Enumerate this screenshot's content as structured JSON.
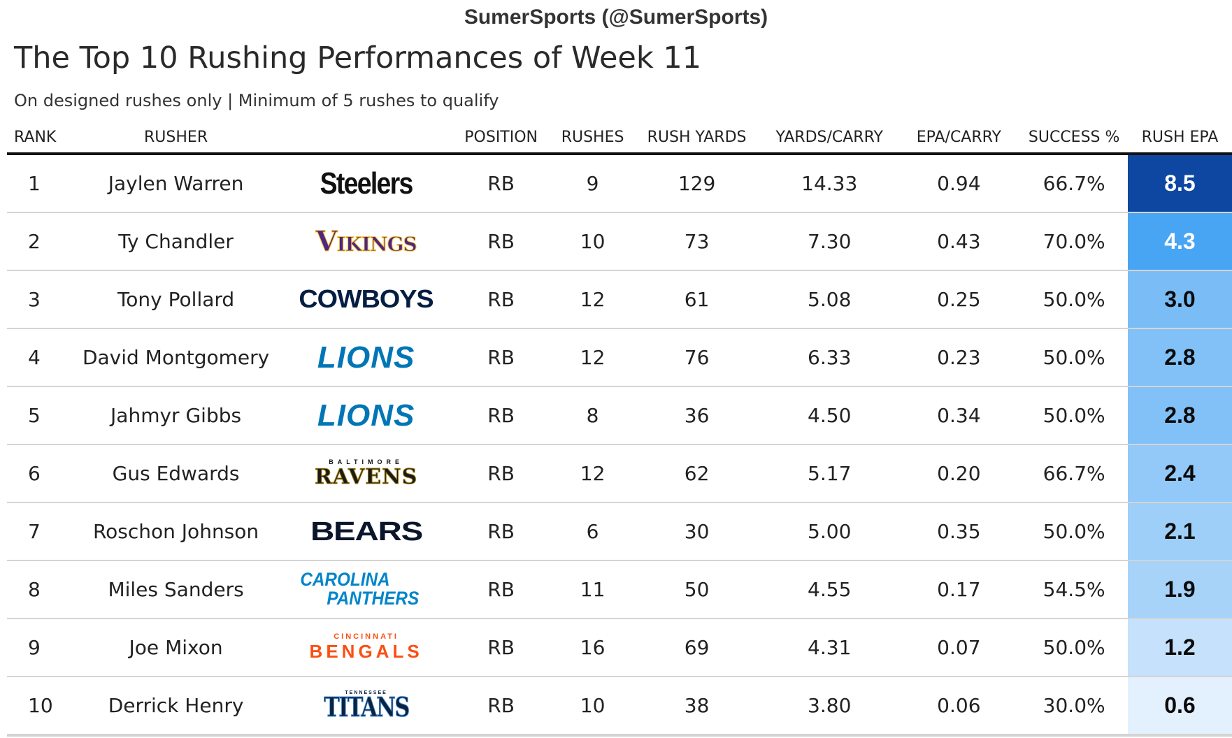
{
  "credit": "SumerSports (@SumerSports)",
  "title": "The Top 10 Rushing Performances of Week 11",
  "subtitle": "On designed rushes only | Minimum of 5 rushes to qualify",
  "columns": {
    "rank": "RANK",
    "rusher": "RUSHER",
    "position": "POSITION",
    "rushes": "RUSHES",
    "rush_yards": "RUSH YARDS",
    "yards_carry": "YARDS/CARRY",
    "epa_carry": "EPA/CARRY",
    "success": "SUCCESS %",
    "rush_epa": "RUSH EPA"
  },
  "chart_data": {
    "type": "table",
    "title": "The Top 10 Rushing Performances of Week 11",
    "subtitle": "On designed rushes only | Minimum of 5 rushes to qualify",
    "rows": [
      {
        "rank": "1",
        "rusher": "Jaylen Warren",
        "team": "Steelers",
        "position": "RB",
        "rushes": "9",
        "rush_yards": "129",
        "yards_carry": "14.33",
        "epa_carry": "0.94",
        "success": "66.7%",
        "rush_epa": "8.5",
        "epa_value": 8.5
      },
      {
        "rank": "2",
        "rusher": "Ty Chandler",
        "team": "Vikings",
        "position": "RB",
        "rushes": "10",
        "rush_yards": "73",
        "yards_carry": "7.30",
        "epa_carry": "0.43",
        "success": "70.0%",
        "rush_epa": "4.3",
        "epa_value": 4.3
      },
      {
        "rank": "3",
        "rusher": "Tony Pollard",
        "team": "COWBOYS",
        "position": "RB",
        "rushes": "12",
        "rush_yards": "61",
        "yards_carry": "5.08",
        "epa_carry": "0.25",
        "success": "50.0%",
        "rush_epa": "3.0",
        "epa_value": 3.0
      },
      {
        "rank": "4",
        "rusher": "David Montgomery",
        "team": "LIONS",
        "position": "RB",
        "rushes": "12",
        "rush_yards": "76",
        "yards_carry": "6.33",
        "epa_carry": "0.23",
        "success": "50.0%",
        "rush_epa": "2.8",
        "epa_value": 2.8
      },
      {
        "rank": "5",
        "rusher": "Jahmyr Gibbs",
        "team": "LIONS",
        "position": "RB",
        "rushes": "8",
        "rush_yards": "36",
        "yards_carry": "4.50",
        "epa_carry": "0.34",
        "success": "50.0%",
        "rush_epa": "2.8",
        "epa_value": 2.8
      },
      {
        "rank": "6",
        "rusher": "Gus Edwards",
        "team": "BALTIMORE RAVENS",
        "position": "RB",
        "rushes": "12",
        "rush_yards": "62",
        "yards_carry": "5.17",
        "epa_carry": "0.20",
        "success": "66.7%",
        "rush_epa": "2.4",
        "epa_value": 2.4
      },
      {
        "rank": "7",
        "rusher": "Roschon Johnson",
        "team": "BEARS",
        "position": "RB",
        "rushes": "6",
        "rush_yards": "30",
        "yards_carry": "5.00",
        "epa_carry": "0.35",
        "success": "50.0%",
        "rush_epa": "2.1",
        "epa_value": 2.1
      },
      {
        "rank": "8",
        "rusher": "Miles Sanders",
        "team": "CAROLINA PANTHERS",
        "position": "RB",
        "rushes": "11",
        "rush_yards": "50",
        "yards_carry": "4.55",
        "epa_carry": "0.17",
        "success": "54.5%",
        "rush_epa": "1.9",
        "epa_value": 1.9
      },
      {
        "rank": "9",
        "rusher": "Joe Mixon",
        "team": "CINCINNATI BENGALS",
        "position": "RB",
        "rushes": "16",
        "rush_yards": "69",
        "yards_carry": "4.31",
        "epa_carry": "0.07",
        "success": "50.0%",
        "rush_epa": "1.2",
        "epa_value": 1.2
      },
      {
        "rank": "10",
        "rusher": "Derrick Henry",
        "team": "TENNESSEE TITANS",
        "position": "RB",
        "rushes": "10",
        "rush_yards": "38",
        "yards_carry": "3.80",
        "epa_carry": "0.06",
        "success": "30.0%",
        "rush_epa": "0.6",
        "epa_value": 0.6
      }
    ]
  },
  "logos": {
    "Steelers": {
      "line1": "",
      "line2": "Steelers",
      "color": "#111111",
      "sub_color": "#111111",
      "style": "steelers"
    },
    "Vikings": {
      "line1": "",
      "line2": "Vikings",
      "color": "#4f2683",
      "sub_color": "#ffc62f",
      "style": "vikings"
    },
    "COWBOYS": {
      "line1": "",
      "line2": "COWBOYS",
      "color": "#041e42",
      "sub_color": "#041e42",
      "style": "cowboys"
    },
    "LIONS": {
      "line1": "",
      "line2": "LIONS",
      "color": "#0076b6",
      "sub_color": "#0076b6",
      "style": "lions"
    },
    "BALTIMORE RAVENS": {
      "line1": "BALTIMORE",
      "line2": "RAVENS",
      "color": "#1a1a1a",
      "sub_color": "#9e7c0c",
      "style": "ravens"
    },
    "BEARS": {
      "line1": "",
      "line2": "BEARS",
      "color": "#0b162a",
      "sub_color": "#0b162a",
      "style": "bears"
    },
    "CAROLINA PANTHERS": {
      "line1": "CAROLINA",
      "line2": "PANTHERS",
      "color": "#0085ca",
      "sub_color": "#0085ca",
      "style": "panthers"
    },
    "CINCINNATI BENGALS": {
      "line1": "CINCINNATI",
      "line2": "BENGALS",
      "color": "#fb4f14",
      "sub_color": "#fb4f14",
      "style": "bengals"
    },
    "TENNESSEE TITANS": {
      "line1": "TENNESSEE",
      "line2": "TITANS",
      "color": "#0c2340",
      "sub_color": "#4b92db",
      "style": "titans"
    }
  },
  "epa_scale": {
    "min": 0.6,
    "max": 8.5,
    "low_color": "#e3f0fd",
    "mid_color": "#3fa0f2",
    "high_color": "#0d47a1"
  }
}
